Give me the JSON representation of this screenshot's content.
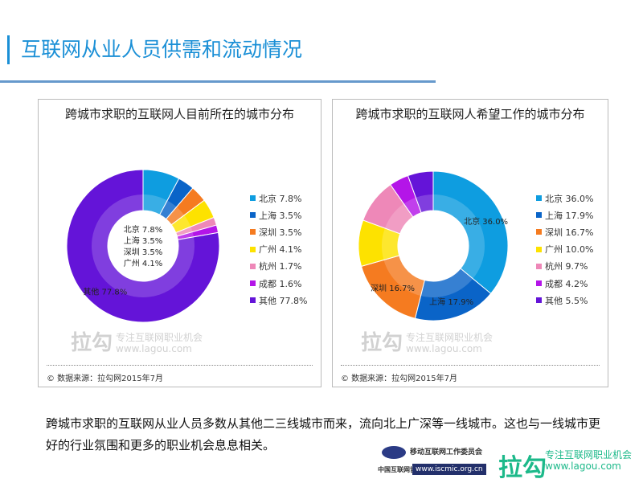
{
  "page_title": "互联网从业人员供需和流动情况",
  "conclusion": "跨城市求职的互联网从业人员多数从其他二三线城市而来，流向北上广深等一线城市。这也与一线城市更好的行业氛围和更多的职业机会息息相关。",
  "watermark": {
    "logo": "拉勾",
    "slogan": "专注互联网职业机会",
    "url": "www.lagou.com"
  },
  "footer": {
    "isc_name": "移动互联网工作委员会",
    "isc_org": "中国互联网协会",
    "isc_url": "www.iscmic.org.cn",
    "lagou_logo": "拉勾",
    "lagou_slogan": "专注互联网职业机会",
    "lagou_url": "www.lagou.com"
  },
  "chart_data": [
    {
      "type": "pie",
      "variant": "donut",
      "title": "跨城市求职的互联网人目前所在的城市分布",
      "source": "© 数据来源：拉勾网2015年7月",
      "legend_position": "right",
      "categories": [
        "北京",
        "上海",
        "深圳",
        "广州",
        "杭州",
        "成都",
        "其他"
      ],
      "values": [
        7.8,
        3.5,
        3.5,
        4.1,
        1.7,
        1.6,
        77.8
      ],
      "labels": [
        "北京 7.8%",
        "上海 3.5%",
        "深圳 3.5%",
        "广州 4.1%",
        "杭州 1.7%",
        "成都 1.6%",
        "其他 77.8%"
      ],
      "data_labels_shown": [
        0,
        1,
        2,
        3,
        6
      ],
      "colors": [
        "#0e9de0",
        "#0a64c8",
        "#f57b20",
        "#fde200",
        "#ee88b8",
        "#b415e8",
        "#6414d8"
      ]
    },
    {
      "type": "pie",
      "variant": "donut",
      "title": "跨城市求职的互联网人希望工作的城市分布",
      "source": "© 数据来源：拉勾网2015年7月",
      "legend_position": "right",
      "categories": [
        "北京",
        "上海",
        "深圳",
        "广州",
        "杭州",
        "成都",
        "其他"
      ],
      "values": [
        36.0,
        17.9,
        16.7,
        10.0,
        9.7,
        4.2,
        5.5
      ],
      "labels": [
        "北京 36.0%",
        "上海 17.9%",
        "深圳 16.7%",
        "广州 10.0%",
        "杭州 9.7%",
        "成都 4.2%",
        "其他 5.5%"
      ],
      "data_labels_shown": [
        0,
        1,
        2
      ],
      "colors": [
        "#0e9de0",
        "#0a64c8",
        "#f57b20",
        "#fde200",
        "#ee88b8",
        "#b415e8",
        "#6414d8"
      ]
    }
  ]
}
